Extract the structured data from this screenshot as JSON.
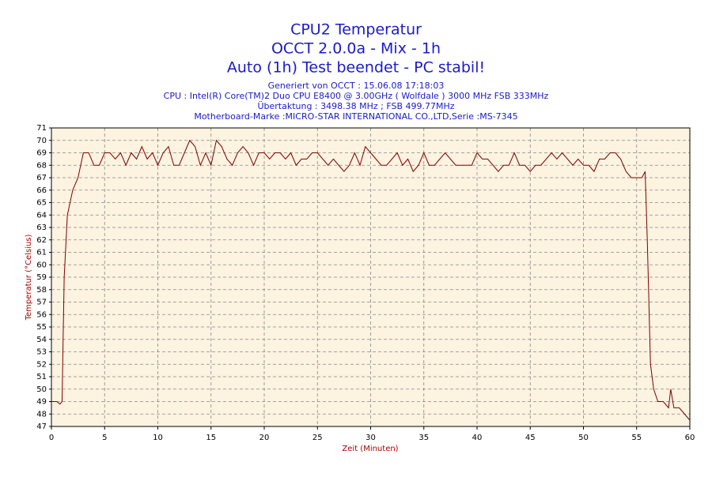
{
  "chart_data": {
    "type": "line",
    "title": [
      "CPU2 Temperatur",
      "OCCT 2.0.0a - Mix - 1h",
      "Auto (1h) Test beendet - PC stabil!"
    ],
    "subtitle": [
      "Generiert von OCCT : 15.06.08 17:18:03",
      "CPU : Intel(R) Core(TM)2 Duo CPU E8400 @ 3.00GHz ( Wolfdale ) 3000 MHz FSB 333MHz",
      "Übertaktung : 3498.38 MHz ; FSB 499.77MHz",
      "Motherboard-Marke :MICRO-STAR INTERNATIONAL CO.,LTD,Serie :MS-7345"
    ],
    "x_label": "Zeit (Minuten)",
    "y_label": "Temperatur (°Celsius)",
    "xlim": [
      0,
      60
    ],
    "ylim": [
      47,
      71
    ],
    "xticks": [
      0,
      5,
      10,
      15,
      20,
      25,
      30,
      35,
      40,
      45,
      50,
      55,
      60
    ],
    "yticks": [
      47,
      48,
      49,
      50,
      51,
      52,
      53,
      54,
      55,
      56,
      57,
      58,
      59,
      60,
      61,
      62,
      63,
      64,
      65,
      66,
      67,
      68,
      69,
      70,
      71
    ],
    "grid": true,
    "series": [
      {
        "name": "CPU2",
        "color": "#800000",
        "x": [
          0,
          0.5,
          0.8,
          1,
          1.2,
          1.5,
          2,
          2.5,
          3,
          3.5,
          4,
          4.5,
          5,
          5.5,
          6,
          6.5,
          7,
          7.5,
          8,
          8.5,
          9,
          9.5,
          10,
          10.5,
          11,
          11.5,
          12,
          12.5,
          13,
          13.5,
          14,
          14.5,
          15,
          15.5,
          16,
          16.5,
          17,
          17.5,
          18,
          18.5,
          19,
          19.5,
          20,
          20.5,
          21,
          21.5,
          22,
          22.5,
          23,
          23.5,
          24,
          24.5,
          25,
          25.5,
          26,
          26.5,
          27,
          27.5,
          28,
          28.5,
          29,
          29.5,
          30,
          30.5,
          31,
          31.5,
          32,
          32.5,
          33,
          33.5,
          34,
          34.5,
          35,
          35.5,
          36,
          36.5,
          37,
          37.5,
          38,
          38.5,
          39,
          39.5,
          40,
          40.5,
          41,
          42,
          42.5,
          43,
          43.5,
          44,
          44.5,
          45,
          45.5,
          46,
          46.5,
          47,
          47.5,
          48,
          48.5,
          49,
          49.5,
          50,
          50.5,
          51,
          51.5,
          52,
          52.5,
          53,
          53.5,
          54,
          54.5,
          55,
          55.5,
          55.8,
          56,
          56.3,
          56.6,
          57,
          57.5,
          58,
          58.2,
          58.5,
          59,
          59.5,
          60
        ],
        "values": [
          49,
          49,
          48.8,
          49,
          59,
          64,
          66,
          67,
          69,
          69,
          68,
          68,
          69,
          69,
          68.5,
          69,
          68,
          69,
          68.5,
          69.5,
          68.5,
          69,
          68,
          69,
          69.5,
          68,
          68,
          69,
          70,
          69.5,
          68,
          69,
          68,
          70,
          69.5,
          68.5,
          68,
          69,
          69.5,
          69,
          68,
          69,
          69,
          68.5,
          69,
          69,
          68.5,
          69,
          68,
          68.5,
          68.5,
          69,
          69,
          68.5,
          68,
          68.5,
          68,
          67.5,
          68,
          69,
          68,
          69.5,
          69,
          68.5,
          68,
          68,
          68.5,
          69,
          68,
          68.5,
          67.5,
          68,
          69,
          68,
          68,
          68.5,
          69,
          68.5,
          68,
          68,
          68,
          68,
          69,
          68.5,
          68.5,
          67.5,
          68,
          68,
          69,
          68,
          68,
          67.5,
          68,
          68,
          68.5,
          69,
          68.5,
          69,
          68.5,
          68,
          68.5,
          68,
          68,
          67.5,
          68.5,
          68.5,
          69,
          69,
          68.5,
          67.5,
          67,
          67,
          67,
          67.5,
          62,
          52,
          50,
          49,
          49,
          48.5,
          50,
          48.5,
          48.5,
          48,
          47.5
        ]
      }
    ]
  }
}
